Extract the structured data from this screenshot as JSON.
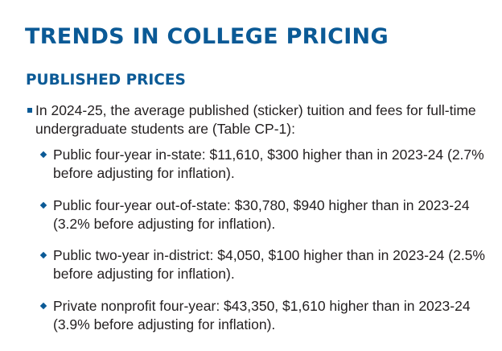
{
  "title": "TRENDS IN COLLEGE PRICING",
  "subtitle": "PUBLISHED PRICES",
  "intro": "In 2024-25, the average published (sticker) tuition and fees for full-time undergraduate students are (Table CP-1):",
  "items": [
    "Public four-year in-state: $11,610, $300 higher than in 2023-24 (2.7% before adjusting for inflation).",
    "Public four-year out-of-state: $30,780, $940 higher than in 2023-24 (3.2% before adjusting for inflation).",
    "Public two-year in-district: $4,050, $100 higher than in 2023-24 (2.5% before adjusting for inflation).",
    "Private nonprofit four-year: $43,350, $1,610 higher than in 2023-24 (3.9% before adjusting for inflation)."
  ],
  "colors": {
    "accent": "#0b5a96",
    "text": "#231f20"
  }
}
